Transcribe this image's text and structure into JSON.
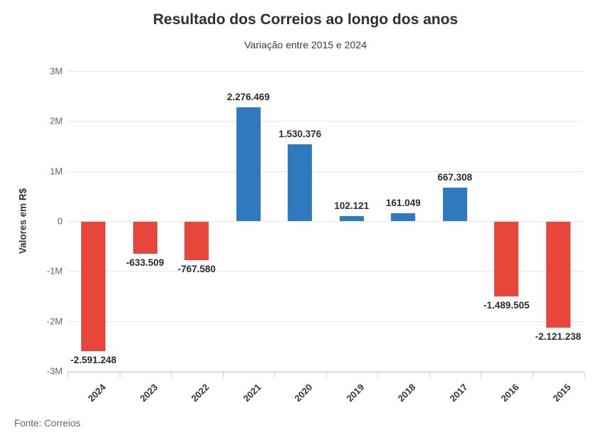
{
  "header": {
    "title": "Resultado dos Correios ao longo dos anos",
    "subtitle": "Variação entre 2015 e 2024"
  },
  "footer": {
    "source": "Fonte: Correios"
  },
  "chart_data": {
    "type": "bar",
    "title": "Resultado dos Correios ao longo dos anos",
    "subtitle": "Variação entre 2015 e 2024",
    "ylabel": "Valores em R$",
    "xlabel": "",
    "categories": [
      "2024",
      "2023",
      "2022",
      "2021",
      "2020",
      "2019",
      "2018",
      "2017",
      "2016",
      "2015"
    ],
    "values": [
      -2591248,
      -633509,
      -767580,
      2276469,
      1530376,
      102121,
      161049,
      667308,
      -1489505,
      -2121238
    ],
    "value_labels": [
      "-2.591.248",
      "-633.509",
      "-767.580",
      "2.276.469",
      "1.530.376",
      "102.121",
      "161.049",
      "667.308",
      "-1.489.505",
      "-2.121.238"
    ],
    "yticks": [
      3000000,
      2000000,
      1000000,
      0,
      -1000000,
      -2000000,
      -3000000
    ],
    "ytick_labels": [
      "3M",
      "2M",
      "1M",
      "0",
      "-1M",
      "-2M",
      "-3M"
    ],
    "ylim": [
      -3000000,
      3000000
    ],
    "grid": true,
    "legend": "none",
    "colors": {
      "positive": "#2f7abf",
      "negative": "#e8463a",
      "gridline": "#e6e6e6",
      "axis": "#cfcfcf"
    }
  }
}
